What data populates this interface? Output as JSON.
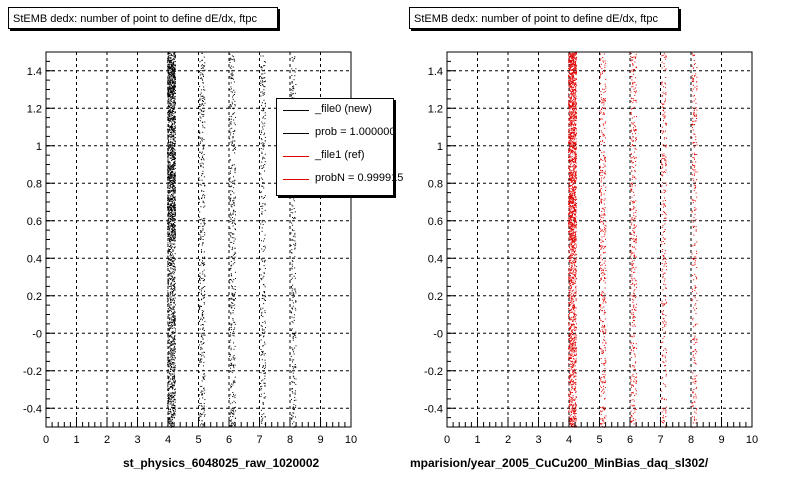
{
  "chart_data": [
    {
      "type": "scatter",
      "title": "StEMB dedx: number of point to define dE/dx, ftpc",
      "xlabel": "st_physics_6048025_raw_1020002",
      "ylabel": "",
      "xlim": [
        0,
        10
      ],
      "ylim": [
        -0.5,
        1.5
      ],
      "x_ticks": [
        "0",
        "1",
        "2",
        "3",
        "4",
        "5",
        "6",
        "7",
        "8",
        "9",
        "10"
      ],
      "y_ticks": [
        "-0.4",
        "-0.2",
        "-0",
        "0.2",
        "0.4",
        "0.6",
        "0.8",
        "1",
        "1.2",
        "1.4"
      ],
      "grid": true,
      "color": "#000000",
      "series": [
        {
          "x": 4.1,
          "density": "very high",
          "y_range": [
            -0.5,
            1.5
          ]
        },
        {
          "x": 5.1,
          "density": "medium",
          "y_range": [
            -0.5,
            1.5
          ]
        },
        {
          "x": 6.1,
          "density": "medium",
          "y_range": [
            -0.5,
            1.5
          ]
        },
        {
          "x": 7.1,
          "density": "low",
          "y_range": [
            -0.5,
            1.5
          ]
        },
        {
          "x": 8.1,
          "density": "low",
          "y_range": [
            -0.5,
            1.5
          ]
        }
      ],
      "legend": {
        "position": "top-right",
        "entries": [
          {
            "label": "_file0 (new)",
            "color": "#000000"
          },
          {
            "label": "prob = 1.000000",
            "color": "#000000"
          },
          {
            "label": "_file1 (ref)",
            "color": "#e00000"
          },
          {
            "label": "probN = 0.999915",
            "color": "#e00000"
          }
        ]
      }
    },
    {
      "type": "scatter",
      "title": "StEMB dedx: number of point to define dE/dx, ftpc",
      "xlabel": "mparision/year_2005_CuCu200_MinBias_daq_sl302/",
      "ylabel": "",
      "xlim": [
        0,
        10
      ],
      "ylim": [
        -0.5,
        1.5
      ],
      "x_ticks": [
        "0",
        "1",
        "2",
        "3",
        "4",
        "5",
        "6",
        "7",
        "8",
        "9",
        "10"
      ],
      "y_ticks": [
        "-0.4",
        "-0.2",
        "-0",
        "0.2",
        "0.4",
        "0.6",
        "0.8",
        "1",
        "1.2",
        "1.4"
      ],
      "grid": true,
      "color": "#e00000",
      "series": [
        {
          "x": 4.1,
          "density": "very high",
          "y_range": [
            -0.5,
            1.5
          ]
        },
        {
          "x": 5.1,
          "density": "medium",
          "y_range": [
            -0.5,
            1.5
          ]
        },
        {
          "x": 6.1,
          "density": "medium",
          "y_range": [
            -0.5,
            1.5
          ]
        },
        {
          "x": 7.1,
          "density": "low",
          "y_range": [
            -0.5,
            1.5
          ]
        },
        {
          "x": 8.1,
          "density": "low",
          "y_range": [
            -0.5,
            1.5
          ]
        }
      ]
    }
  ]
}
